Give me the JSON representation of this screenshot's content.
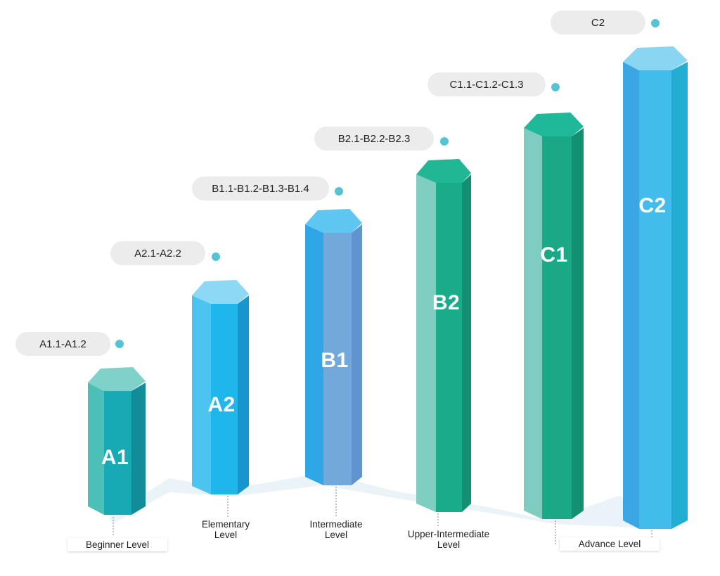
{
  "title": "",
  "levels": [
    {
      "code": "A1",
      "sublevels": "A1.1-A1.2",
      "name": "Beginner Level",
      "colors": {
        "left": "#4cc0b8",
        "mid": "#17aab5",
        "right": "#138c99",
        "top": "#7fd2c9"
      }
    },
    {
      "code": "A2",
      "sublevels": "A2.1-A2.2",
      "name": "Elementary\nLevel",
      "colors": {
        "left": "#4dc4ef",
        "mid": "#1fb6ec",
        "right": "#1796cd",
        "top": "#8dd9f5"
      }
    },
    {
      "code": "B1",
      "sublevels": "B1.1-B1.2-B1.3-B1.4",
      "name": "Intermediate\nLevel",
      "colors": {
        "left": "#2fa6e6",
        "mid": "#72a9da",
        "right": "#6093cf",
        "top": "#5fc6f2"
      }
    },
    {
      "code": "B2",
      "sublevels": "B2.1-B2.2-B2.3",
      "name": "Upper-Intermediate\nLevel",
      "colors": {
        "left": "#80cdc2",
        "mid": "#1aab8b",
        "right": "#138f74",
        "top": "#22b794"
      }
    },
    {
      "code": "C1",
      "sublevels": "C1.1-C1.2-C1.3",
      "name": "Advance Level",
      "colors": {
        "left": "#7fcdc1",
        "mid": "#1aa887",
        "right": "#13906f",
        "top": "#1fb898"
      }
    },
    {
      "code": "C2",
      "sublevels": "C2",
      "name": "",
      "colors": {
        "left": "#3aa6e3",
        "mid": "#42bdeb",
        "right": "#22aed2",
        "top": "#8ad6f2"
      }
    }
  ],
  "accent": {
    "dot": "#55c3d4",
    "pill": "#ececec",
    "floor": "#dcebf3"
  }
}
